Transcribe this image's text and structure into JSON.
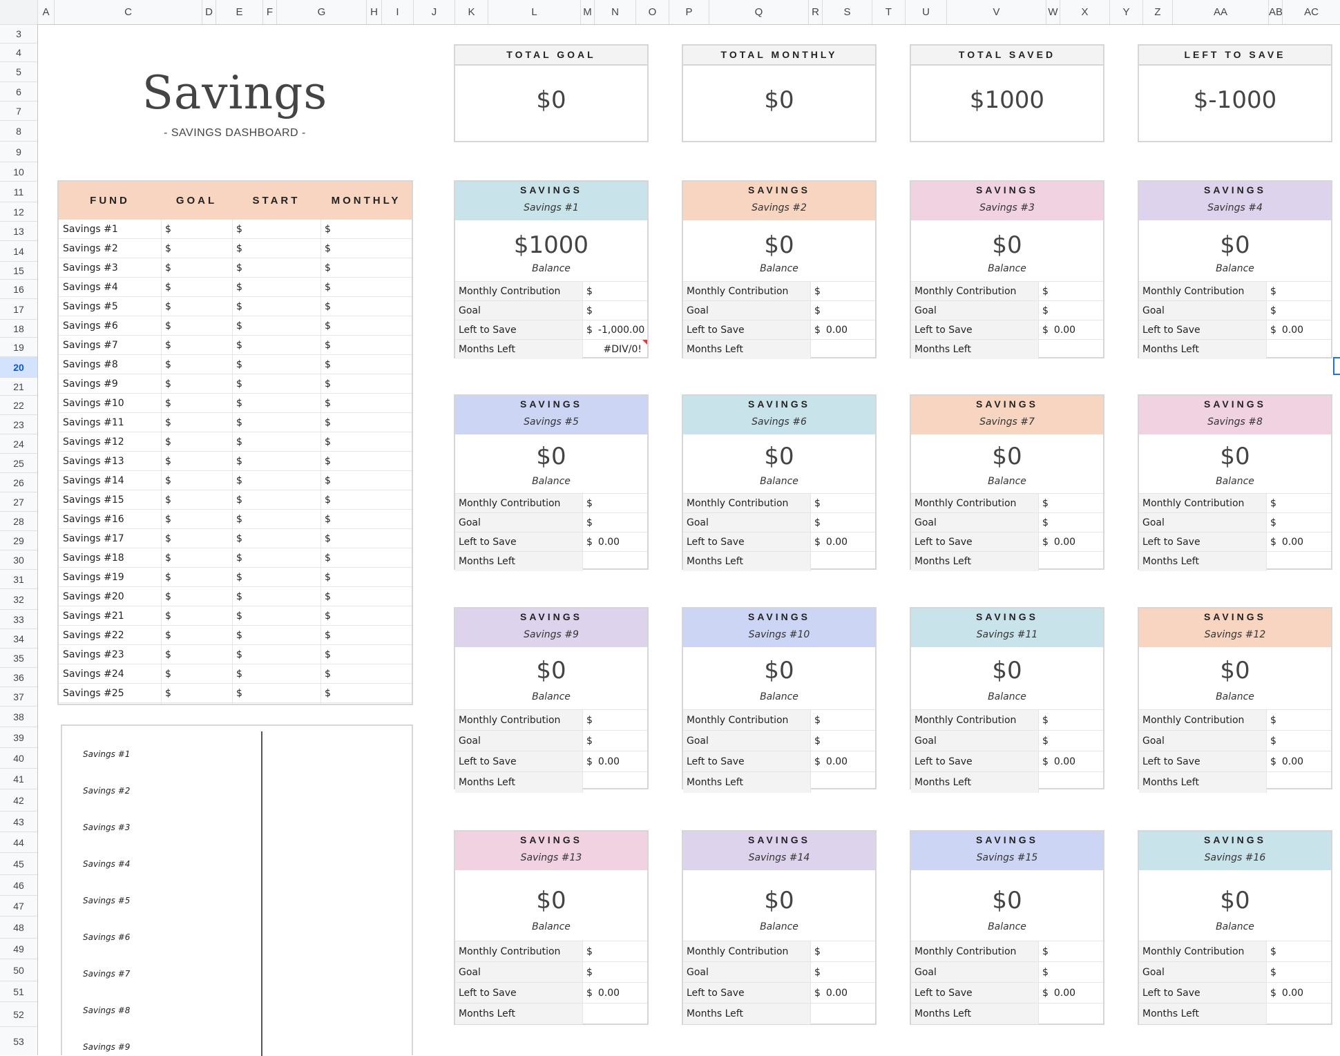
{
  "columns": [
    "A",
    "C",
    "D",
    "E",
    "F",
    "G",
    "H",
    "I",
    "J",
    "K",
    "L",
    "M",
    "N",
    "O",
    "P",
    "Q",
    "R",
    "S",
    "T",
    "U",
    "V",
    "W",
    "X",
    "Y",
    "Z",
    "AA",
    "AB",
    "AC"
  ],
  "rows": [
    "3",
    "4",
    "5",
    "6",
    "7",
    "8",
    "9",
    "10",
    "11",
    "12",
    "13",
    "14",
    "15",
    "16",
    "17",
    "18",
    "19",
    "20",
    "21",
    "22",
    "23",
    "24",
    "25",
    "26",
    "27",
    "28",
    "29",
    "30",
    "31",
    "32",
    "33",
    "34",
    "35",
    "36",
    "37",
    "38",
    "39",
    "40",
    "41",
    "42",
    "43",
    "44",
    "45",
    "46",
    "47",
    "48",
    "49",
    "50",
    "51",
    "52",
    "53"
  ],
  "active_row": "20",
  "dashboard": {
    "title": "Savings",
    "subtitle": "- SAVINGS DASHBOARD -"
  },
  "summary": [
    {
      "label": "TOTAL GOAL",
      "value": "$0"
    },
    {
      "label": "TOTAL MONTHLY",
      "value": "$0"
    },
    {
      "label": "TOTAL SAVED",
      "value": "$1000"
    },
    {
      "label": "LEFT TO SAVE",
      "value": "$-1000"
    }
  ],
  "fund_table": {
    "headers": [
      "FUND",
      "GOAL",
      "START",
      "MONTHLY"
    ],
    "currency": "$",
    "funds": [
      "Savings #1",
      "Savings #2",
      "Savings #3",
      "Savings #4",
      "Savings #5",
      "Savings #6",
      "Savings #7",
      "Savings #8",
      "Savings #9",
      "Savings #10",
      "Savings #11",
      "Savings #12",
      "Savings #13",
      "Savings #14",
      "Savings #15",
      "Savings #16",
      "Savings #17",
      "Savings #18",
      "Savings #19",
      "Savings #20",
      "Savings #21",
      "Savings #22",
      "Savings #23",
      "Savings #24",
      "Savings #25"
    ]
  },
  "card_labels": {
    "title": "SAVINGS",
    "balance": "Balance",
    "monthly": "Monthly Contribution",
    "goal": "Goal",
    "left": "Left to Save",
    "months": "Months Left",
    "currency": "$"
  },
  "cards": [
    {
      "name": "Savings #1",
      "color": "#c9e3ea",
      "balance": "$1000",
      "left": "-1,000.00",
      "months": "#DIV/0!"
    },
    {
      "name": "Savings #2",
      "color": "#f7d5c0",
      "balance": "$0",
      "left": "0.00",
      "months": ""
    },
    {
      "name": "Savings #3",
      "color": "#f0d2e0",
      "balance": "$0",
      "left": "0.00",
      "months": ""
    },
    {
      "name": "Savings #4",
      "color": "#ddd3ec",
      "balance": "$0",
      "left": "0.00",
      "months": ""
    },
    {
      "name": "Savings #5",
      "color": "#ccd5f4",
      "balance": "$0",
      "left": "0.00",
      "months": ""
    },
    {
      "name": "Savings #6",
      "color": "#c9e3ea",
      "balance": "$0",
      "left": "0.00",
      "months": ""
    },
    {
      "name": "Savings #7",
      "color": "#f7d5c0",
      "balance": "$0",
      "left": "0.00",
      "months": ""
    },
    {
      "name": "Savings #8",
      "color": "#f0d2e0",
      "balance": "$0",
      "left": "0.00",
      "months": ""
    },
    {
      "name": "Savings #9",
      "color": "#ddd3ec",
      "balance": "$0",
      "left": "0.00",
      "months": ""
    },
    {
      "name": "Savings #10",
      "color": "#ccd5f4",
      "balance": "$0",
      "left": "0.00",
      "months": ""
    },
    {
      "name": "Savings #11",
      "color": "#c9e3ea",
      "balance": "$0",
      "left": "0.00",
      "months": ""
    },
    {
      "name": "Savings #12",
      "color": "#f7d5c0",
      "balance": "$0",
      "left": "0.00",
      "months": ""
    },
    {
      "name": "Savings #13",
      "color": "#f0d2e0",
      "balance": "$0",
      "left": "0.00",
      "months": ""
    },
    {
      "name": "Savings #14",
      "color": "#ddd3ec",
      "balance": "$0",
      "left": "0.00",
      "months": ""
    },
    {
      "name": "Savings #15",
      "color": "#ccd5f4",
      "balance": "$0",
      "left": "0.00",
      "months": ""
    },
    {
      "name": "Savings #16",
      "color": "#c9e3ea",
      "balance": "$0",
      "left": "0.00",
      "months": ""
    }
  ],
  "chart_data": {
    "type": "bar",
    "orientation": "horizontal",
    "categories": [
      "Savings #1",
      "Savings #2",
      "Savings #3",
      "Savings #4",
      "Savings #5",
      "Savings #6",
      "Savings #7",
      "Savings #8",
      "Savings #9"
    ],
    "series": [
      {
        "values": [
          0,
          0,
          0,
          0,
          0,
          0,
          0,
          0,
          0
        ]
      }
    ],
    "title": "",
    "xlabel": "",
    "ylabel": ""
  }
}
